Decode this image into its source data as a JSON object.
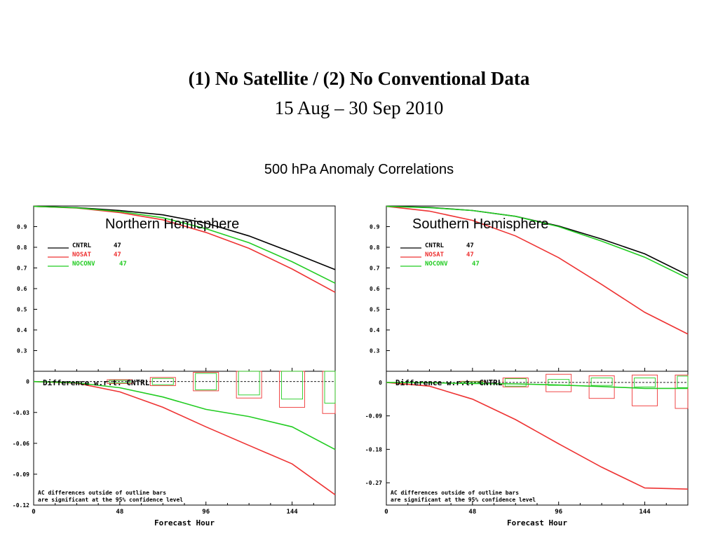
{
  "titles": {
    "line1": "(1) No Satellite /  (2) No Conventional Data",
    "line2": "15 Aug – 30 Sep 2010",
    "line3": "500 hPa Anomaly Correlations"
  },
  "colors": {
    "cntrl": "#000000",
    "nosat": "#ee3333",
    "noconv": "#22cc22"
  },
  "chart_data": [
    {
      "type": "line",
      "name": "Northern Hemisphere",
      "title": "Northern Hemisphere",
      "xlabel": "Forecast Hour",
      "xlim": [
        0,
        168
      ],
      "xticks": [
        0,
        48,
        96,
        144
      ],
      "upper": {
        "ylim": [
          0.2,
          1.0
        ],
        "yticks": [
          0.3,
          0.4,
          0.5,
          0.6,
          0.7,
          0.8,
          0.9
        ],
        "ytick_labels": [
          "0.3",
          "0.4",
          "0.5",
          "0.6",
          "0.7",
          "0.8",
          "0.9"
        ],
        "legend": [
          {
            "label": "CNTRL",
            "count": "47",
            "key": "cntrl"
          },
          {
            "label": "NOSAT",
            "count": "47",
            "key": "nosat"
          },
          {
            "label": "NOCONV",
            "count": "47",
            "key": "noconv"
          }
        ],
        "x": [
          0,
          24,
          48,
          72,
          96,
          120,
          144,
          168
        ],
        "series": [
          {
            "key": "cntrl",
            "values": [
              0.998,
              0.992,
              0.978,
              0.957,
              0.917,
              0.855,
              0.775,
              0.692
            ]
          },
          {
            "key": "nosat",
            "values": [
              0.998,
              0.99,
              0.968,
              0.933,
              0.872,
              0.795,
              0.695,
              0.582
            ]
          },
          {
            "key": "noconv",
            "values": [
              0.998,
              0.991,
              0.973,
              0.943,
              0.89,
              0.822,
              0.73,
              0.626
            ]
          }
        ]
      },
      "lower": {
        "ylim": [
          -0.12,
          0.01
        ],
        "yticks": [
          0,
          -0.03,
          -0.06,
          -0.09,
          -0.12
        ],
        "ytick_labels": [
          "0",
          "-0.03",
          "-0.06",
          "-0.09",
          "-0.12"
        ],
        "title": "Difference w.r.t. CNTRL",
        "note1": "AC differences outside of outline bars",
        "note2": "are significant at the 95% confidence level",
        "x": [
          0,
          24,
          48,
          72,
          96,
          120,
          144,
          168
        ],
        "series": [
          {
            "key": "nosat",
            "values": [
              0,
              -0.0015,
              -0.01,
              -0.025,
              -0.044,
              -0.062,
              -0.08,
              -0.11
            ]
          },
          {
            "key": "noconv",
            "values": [
              0,
              -0.0012,
              -0.006,
              -0.015,
              -0.027,
              -0.034,
              -0.044,
              -0.066
            ]
          }
        ],
        "bars": [
          {
            "x": 48,
            "nosat": [
              -0.0018,
              0.0018
            ],
            "noconv": [
              -0.0012,
              0.0012
            ]
          },
          {
            "x": 72,
            "nosat": [
              -0.004,
              0.004
            ],
            "noconv": [
              -0.003,
              0.003
            ]
          },
          {
            "x": 96,
            "nosat": [
              -0.009,
              0.009
            ],
            "noconv": [
              -0.008,
              0.008
            ]
          },
          {
            "x": 120,
            "nosat": [
              -0.016,
              0.016
            ],
            "noconv": [
              -0.013,
              0.013
            ]
          },
          {
            "x": 144,
            "nosat": [
              -0.025,
              0.02
            ],
            "noconv": [
              -0.017,
              0.017
            ]
          },
          {
            "x": 168,
            "nosat": [
              -0.031,
              0.02
            ],
            "noconv": [
              -0.021,
              0.02
            ]
          }
        ]
      }
    },
    {
      "type": "line",
      "name": "Southern Hemisphere",
      "title": "Southern Hemisphere",
      "xlabel": "Forecast Hour",
      "xlim": [
        0,
        168
      ],
      "xticks": [
        0,
        48,
        96,
        144
      ],
      "upper": {
        "ylim": [
          0.2,
          1.0
        ],
        "yticks": [
          0.3,
          0.4,
          0.5,
          0.6,
          0.7,
          0.8,
          0.9
        ],
        "ytick_labels": [
          "0.3",
          "0.4",
          "0.5",
          "0.6",
          "0.7",
          "0.8",
          "0.9"
        ],
        "legend": [
          {
            "label": "CNTRL",
            "count": "47",
            "key": "cntrl"
          },
          {
            "label": "NOSAT",
            "count": "47",
            "key": "nosat"
          },
          {
            "label": "NOCONV",
            "count": "47",
            "key": "noconv"
          }
        ],
        "x": [
          0,
          24,
          48,
          72,
          96,
          120,
          144,
          168
        ],
        "series": [
          {
            "key": "cntrl",
            "values": [
              0.998,
              0.993,
              0.978,
              0.95,
              0.903,
              0.84,
              0.768,
              0.665
            ]
          },
          {
            "key": "nosat",
            "values": [
              0.998,
              0.975,
              0.93,
              0.855,
              0.75,
              0.62,
              0.485,
              0.38
            ]
          },
          {
            "key": "noconv",
            "values": [
              0.998,
              0.992,
              0.978,
              0.95,
              0.9,
              0.83,
              0.752,
              0.65
            ]
          }
        ]
      },
      "lower": {
        "ylim": [
          -0.33,
          0.03
        ],
        "yticks": [
          0,
          -0.09,
          -0.18,
          -0.27
        ],
        "ytick_labels": [
          "0",
          "-0.09",
          "-0.18",
          "-0.27"
        ],
        "title": "Difference w.r.t. CNTRL",
        "note1": "AC differences outside of outline bars",
        "note2": "are significant at the 95% confidence level",
        "x": [
          0,
          24,
          48,
          72,
          96,
          120,
          144,
          168
        ],
        "series": [
          {
            "key": "nosat",
            "values": [
              0,
              -0.01,
              -0.045,
              -0.1,
              -0.165,
              -0.228,
              -0.284,
              -0.287
            ]
          },
          {
            "key": "noconv",
            "values": [
              0,
              -0.001,
              -0.003,
              -0.004,
              -0.007,
              -0.011,
              -0.016,
              -0.016
            ]
          }
        ],
        "bars": [
          {
            "x": 48,
            "nosat": [
              -0.003,
              0.003
            ],
            "noconv": [
              -0.002,
              0.002
            ]
          },
          {
            "x": 72,
            "nosat": [
              -0.012,
              0.012
            ],
            "noconv": [
              -0.01,
              0.01
            ]
          },
          {
            "x": 96,
            "nosat": [
              -0.025,
              0.022
            ],
            "noconv": [
              -0.008,
              0.008
            ]
          },
          {
            "x": 120,
            "nosat": [
              -0.043,
              0.018
            ],
            "noconv": [
              -0.008,
              0.012
            ]
          },
          {
            "x": 144,
            "nosat": [
              -0.063,
              0.02
            ],
            "noconv": [
              -0.012,
              0.012
            ]
          },
          {
            "x": 168,
            "nosat": [
              -0.07,
              0.02
            ],
            "noconv": [
              -0.014,
              0.017
            ]
          }
        ]
      }
    }
  ]
}
